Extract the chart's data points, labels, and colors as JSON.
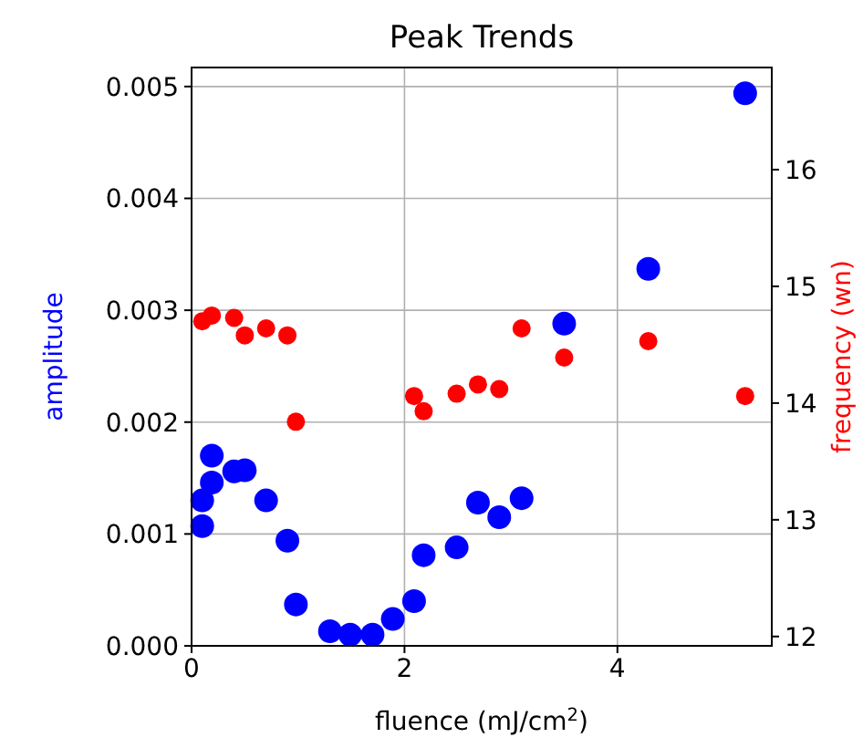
{
  "chart_data": {
    "type": "scatter",
    "title": "Peak Trends",
    "xlabel": "fluence (mJ/cm$^{2}$)",
    "ylabel": "amplitude",
    "y2label": "frequency (wn)",
    "xlim": [
      0,
      5.45
    ],
    "xticks": [
      0,
      2,
      4
    ],
    "ylim": [
      0,
      0.00517
    ],
    "yticks": [
      {
        "value": 0,
        "label": "0.000"
      },
      {
        "value": 0.001,
        "label": "0.001"
      },
      {
        "value": 0.002,
        "label": "0.002"
      },
      {
        "value": 0.003,
        "label": "0.003"
      },
      {
        "value": 0.004,
        "label": "0.004"
      },
      {
        "value": 0.005,
        "label": "0.005"
      }
    ],
    "y2lim": [
      11.92,
      16.875
    ],
    "y2ticks": [
      12,
      13,
      14,
      15,
      16
    ],
    "grid": true,
    "marker": "circle",
    "series": [
      {
        "color": "#0000ff",
        "x": [
          0.1,
          0.1,
          0.19,
          0.19,
          0.4,
          0.5,
          0.7,
          0.9,
          0.98,
          1.3,
          1.49,
          1.7,
          1.89,
          2.09,
          2.18,
          2.49,
          2.69,
          2.89,
          3.1,
          3.5,
          4.29,
          5.2
        ],
        "values": [
          0.00107,
          0.0013,
          0.00146,
          0.0017,
          0.00156,
          0.00157,
          0.0013,
          0.00094,
          0.00037,
          0.00013,
          0.0001,
          0.0001,
          0.00024,
          0.0004,
          0.00081,
          0.00088,
          0.00128,
          0.00115,
          0.00132,
          0.00288,
          0.00337,
          0.00494
        ]
      },
      {
        "color": "#ff0000",
        "axis": "y2",
        "x": [
          0.1,
          0.19,
          0.4,
          0.5,
          0.7,
          0.9,
          0.98,
          2.09,
          2.18,
          2.49,
          2.69,
          2.89,
          3.1,
          3.5,
          4.29,
          5.2
        ],
        "values": [
          14.7,
          14.75,
          14.73,
          14.58,
          14.64,
          14.58,
          13.84,
          14.06,
          13.93,
          14.08,
          14.16,
          14.12,
          14.64,
          14.39,
          14.53,
          14.06
        ]
      }
    ]
  }
}
